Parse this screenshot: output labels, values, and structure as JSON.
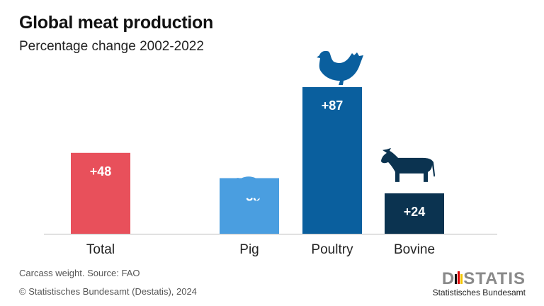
{
  "chart_data": {
    "type": "bar",
    "title": "Global meat production",
    "subtitle": "Percentage change 2002-2022",
    "categories": [
      "Total",
      "Pig",
      "Poultry",
      "Bovine"
    ],
    "values": [
      48,
      33,
      87,
      24
    ],
    "data_labels": [
      "+48",
      "+33",
      "+87",
      "+24"
    ],
    "colors": [
      "#e8505b",
      "#4a9ee0",
      "#0a5f9e",
      "#0b3350"
    ],
    "icons": [
      null,
      "pig-icon",
      "chicken-icon",
      "cow-icon"
    ],
    "ylim": [
      0,
      87
    ],
    "grid": false
  },
  "footer": {
    "note": "Carcass weight. Source: FAO",
    "copyright": "© Statistisches Bundesamt (Destatis), 2024"
  },
  "logo": {
    "text": "DESTATIS",
    "subtext": "Statistisches Bundesamt"
  }
}
